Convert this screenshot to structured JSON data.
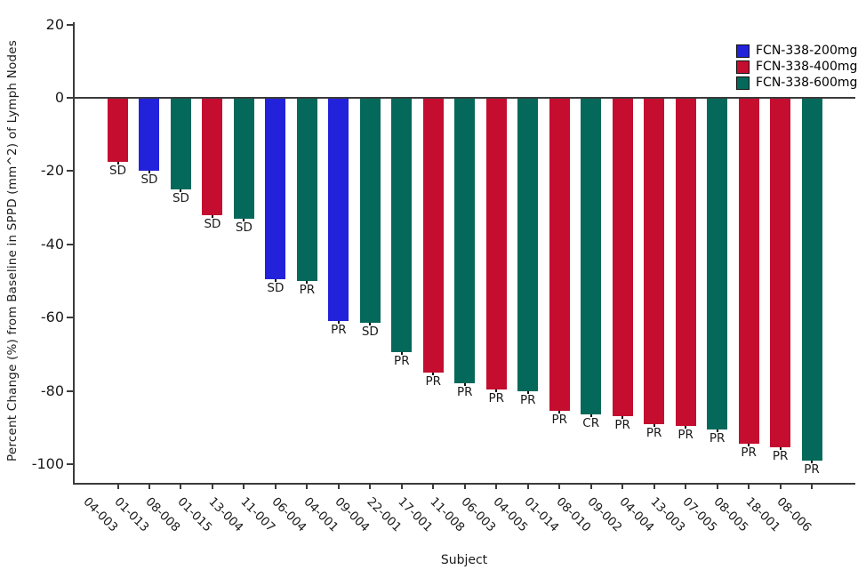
{
  "colors": {
    "background": "#ffffff",
    "axis": "#3b3b3b",
    "text": "#1b1b1b",
    "arm_200mg": "#2222DB",
    "arm_400mg": "#C40D2F",
    "arm_600mg": "#04695A"
  },
  "legend": {
    "position": "top-right",
    "items": [
      {
        "label": "FCN-338-200mg",
        "arm": "FCN-338-200mg",
        "color": "#2222DB"
      },
      {
        "label": "FCN-338-400mg",
        "arm": "FCN-338-400mg",
        "color": "#C40D2F"
      },
      {
        "label": "FCN-338-600mg",
        "arm": "FCN-338-600mg",
        "color": "#04695A"
      }
    ]
  },
  "chart_data": {
    "type": "bar",
    "subtype": "waterfall",
    "title": "",
    "xlabel": "Subject",
    "ylabel": "Percent Change (%) from Baseline in SPPD (mm^2) of Lymph Nodes",
    "ylim": [
      -105,
      21
    ],
    "yticks": [
      20,
      0,
      -20,
      -40,
      -60,
      -80,
      -100
    ],
    "grid": false,
    "legend_position": "top-right",
    "bars": [
      {
        "subject": "04-003",
        "value": -17.5,
        "response": "SD",
        "arm": "FCN-338-400mg"
      },
      {
        "subject": "01-013",
        "value": -20,
        "response": "SD",
        "arm": "FCN-338-200mg"
      },
      {
        "subject": "08-008",
        "value": -25,
        "response": "SD",
        "arm": "FCN-338-600mg"
      },
      {
        "subject": "01-015",
        "value": -32,
        "response": "SD",
        "arm": "FCN-338-400mg"
      },
      {
        "subject": "13-004",
        "value": -33,
        "response": "SD",
        "arm": "FCN-338-600mg"
      },
      {
        "subject": "11-007",
        "value": -49.5,
        "response": "SD",
        "arm": "FCN-338-200mg"
      },
      {
        "subject": "06-004",
        "value": -50,
        "response": "PR",
        "arm": "FCN-338-600mg"
      },
      {
        "subject": "04-001",
        "value": -61,
        "response": "PR",
        "arm": "FCN-338-200mg"
      },
      {
        "subject": "09-004",
        "value": -61.5,
        "response": "SD",
        "arm": "FCN-338-600mg"
      },
      {
        "subject": "22-001",
        "value": -69.5,
        "response": "PR",
        "arm": "FCN-338-600mg"
      },
      {
        "subject": "17-001",
        "value": -75,
        "response": "PR",
        "arm": "FCN-338-400mg"
      },
      {
        "subject": "11-008",
        "value": -78,
        "response": "PR",
        "arm": "FCN-338-600mg"
      },
      {
        "subject": "06-003",
        "value": -79.5,
        "response": "PR",
        "arm": "FCN-338-400mg"
      },
      {
        "subject": "04-005",
        "value": -80,
        "response": "PR",
        "arm": "FCN-338-600mg"
      },
      {
        "subject": "01-014",
        "value": -85.5,
        "response": "PR",
        "arm": "FCN-338-400mg"
      },
      {
        "subject": "08-010",
        "value": -86.5,
        "response": "CR",
        "arm": "FCN-338-600mg"
      },
      {
        "subject": "09-002",
        "value": -87,
        "response": "PR",
        "arm": "FCN-338-400mg"
      },
      {
        "subject": "04-004",
        "value": -89,
        "response": "PR",
        "arm": "FCN-338-400mg"
      },
      {
        "subject": "13-003",
        "value": -89.5,
        "response": "PR",
        "arm": "FCN-338-400mg"
      },
      {
        "subject": "07-005",
        "value": -90.5,
        "response": "PR",
        "arm": "FCN-338-600mg"
      },
      {
        "subject": "08-005",
        "value": -94.5,
        "response": "PR",
        "arm": "FCN-338-400mg"
      },
      {
        "subject": "18-001",
        "value": -95.5,
        "response": "PR",
        "arm": "FCN-338-400mg"
      },
      {
        "subject": "08-006",
        "value": -99,
        "response": "PR",
        "arm": "FCN-338-600mg"
      }
    ]
  }
}
